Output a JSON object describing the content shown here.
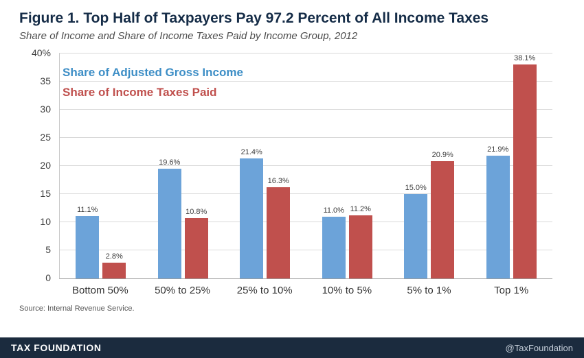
{
  "header": {
    "title": "Figure 1. Top Half of Taxpayers Pay 97.2 Percent of All Income Taxes",
    "subtitle": "Share of Income and Share of Income Taxes Paid by Income Group, 2012"
  },
  "legend": {
    "income": "Share of Adjusted Gross Income",
    "taxes": "Share of Income Taxes Paid"
  },
  "chart_data": {
    "type": "bar",
    "categories": [
      "Bottom 50%",
      "50% to 25%",
      "25% to 10%",
      "10% to 5%",
      "5% to 1%",
      "Top 1%"
    ],
    "series": [
      {
        "name": "Share of Adjusted Gross Income",
        "color": "#6ca3d9",
        "values": [
          11.1,
          19.6,
          21.4,
          11.0,
          15.0,
          21.9
        ]
      },
      {
        "name": "Share of Income Taxes Paid",
        "color": "#c0504d",
        "values": [
          2.8,
          10.8,
          16.3,
          11.2,
          20.9,
          38.1
        ]
      }
    ],
    "ylim": [
      0,
      40
    ],
    "yticks": [
      {
        "value": 0,
        "label": "0"
      },
      {
        "value": 5,
        "label": "5"
      },
      {
        "value": 10,
        "label": "10"
      },
      {
        "value": 15,
        "label": "15"
      },
      {
        "value": 20,
        "label": "20"
      },
      {
        "value": 25,
        "label": "25"
      },
      {
        "value": 30,
        "label": "30"
      },
      {
        "value": 35,
        "label": "35"
      },
      {
        "value": 40,
        "label": "40%"
      }
    ],
    "grid": true,
    "legend_position": "top-left",
    "title": "Figure 1. Top Half of Taxpayers Pay 97.2 Percent of All Income Taxes",
    "xlabel": "",
    "ylabel": ""
  },
  "source": "Source: Internal Revenue Service.",
  "footer": {
    "brand": "TAX FOUNDATION",
    "handle": "@TaxFoundation"
  }
}
